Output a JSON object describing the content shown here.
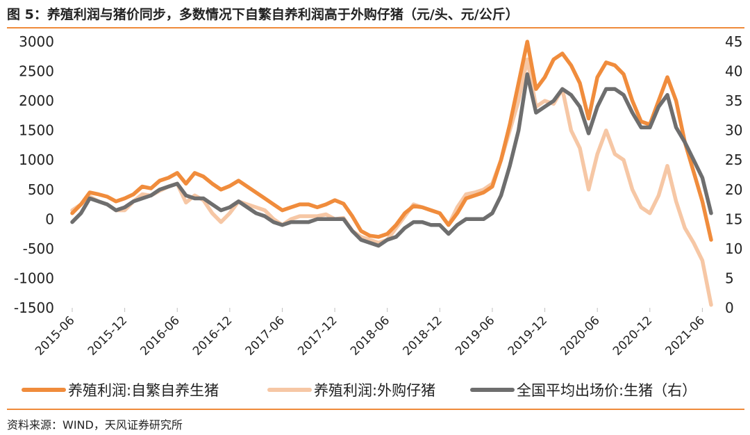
{
  "header": {
    "title": "图 5：养殖利润与猪价同步，多数情况下自繁自养利润高于外购仔猪（元/头、元/公斤）"
  },
  "footer": {
    "source": "资料来源：WIND，天风证券研究所"
  },
  "chart_data": {
    "type": "line",
    "title": "",
    "xlabel": "",
    "ylabel": "",
    "x_tick_labels": [
      "2015-06",
      "2015-12",
      "2016-06",
      "2016-12",
      "2017-06",
      "2017-12",
      "2018-06",
      "2018-12",
      "2019-06",
      "2019-12",
      "2020-06",
      "2020-12",
      "2021-06"
    ],
    "y_left_ticks": [
      "3000",
      "2500",
      "2000",
      "1500",
      "1000",
      "500",
      "0",
      "-500",
      "-1000",
      "-1500"
    ],
    "y_right_ticks": [
      "45",
      "40",
      "35",
      "30",
      "25",
      "20",
      "15",
      "10",
      "5",
      "0"
    ],
    "ylim_left": [
      -1500,
      3000
    ],
    "ylim_right": [
      0,
      45
    ],
    "x_range": [
      "2015-06",
      "2021-07"
    ],
    "grid": false,
    "legend_position": "bottom",
    "colors": {
      "self_bred": "#f08c3c",
      "purchased": "#f6c7a5",
      "price": "#6e6e6e"
    },
    "series": [
      {
        "name": "养殖利润:自繁自养生猪",
        "axis": "left",
        "points": [
          [
            "2015-06",
            100
          ],
          [
            "2015-07",
            250
          ],
          [
            "2015-08",
            450
          ],
          [
            "2015-09",
            420
          ],
          [
            "2015-10",
            380
          ],
          [
            "2015-11",
            300
          ],
          [
            "2015-12",
            350
          ],
          [
            "2016-01",
            420
          ],
          [
            "2016-02",
            550
          ],
          [
            "2016-03",
            520
          ],
          [
            "2016-04",
            650
          ],
          [
            "2016-05",
            700
          ],
          [
            "2016-06",
            780
          ],
          [
            "2016-07",
            600
          ],
          [
            "2016-08",
            780
          ],
          [
            "2016-09",
            720
          ],
          [
            "2016-10",
            600
          ],
          [
            "2016-11",
            500
          ],
          [
            "2016-12",
            560
          ],
          [
            "2017-01",
            650
          ],
          [
            "2017-02",
            550
          ],
          [
            "2017-03",
            450
          ],
          [
            "2017-04",
            350
          ],
          [
            "2017-05",
            250
          ],
          [
            "2017-06",
            150
          ],
          [
            "2017-07",
            200
          ],
          [
            "2017-08",
            250
          ],
          [
            "2017-09",
            250
          ],
          [
            "2017-10",
            200
          ],
          [
            "2017-11",
            250
          ],
          [
            "2017-12",
            320
          ],
          [
            "2018-01",
            260
          ],
          [
            "2018-02",
            50
          ],
          [
            "2018-03",
            -200
          ],
          [
            "2018-04",
            -280
          ],
          [
            "2018-05",
            -300
          ],
          [
            "2018-06",
            -250
          ],
          [
            "2018-07",
            -100
          ],
          [
            "2018-08",
            100
          ],
          [
            "2018-09",
            220
          ],
          [
            "2018-10",
            200
          ],
          [
            "2018-11",
            150
          ],
          [
            "2018-12",
            100
          ],
          [
            "2019-01",
            -100
          ],
          [
            "2019-02",
            100
          ],
          [
            "2019-03",
            350
          ],
          [
            "2019-04",
            400
          ],
          [
            "2019-05",
            450
          ],
          [
            "2019-06",
            550
          ],
          [
            "2019-07",
            1000
          ],
          [
            "2019-08",
            1600
          ],
          [
            "2019-09",
            2300
          ],
          [
            "2019-10",
            3000
          ],
          [
            "2019-11",
            2200
          ],
          [
            "2019-12",
            2400
          ],
          [
            "2020-01",
            2700
          ],
          [
            "2020-02",
            2800
          ],
          [
            "2020-03",
            2600
          ],
          [
            "2020-04",
            2300
          ],
          [
            "2020-05",
            1700
          ],
          [
            "2020-06",
            2400
          ],
          [
            "2020-07",
            2650
          ],
          [
            "2020-08",
            2600
          ],
          [
            "2020-09",
            2450
          ],
          [
            "2020-10",
            2000
          ],
          [
            "2020-11",
            1650
          ],
          [
            "2020-12",
            1600
          ],
          [
            "2021-01",
            2000
          ],
          [
            "2021-02",
            2400
          ],
          [
            "2021-03",
            2000
          ],
          [
            "2021-04",
            1300
          ],
          [
            "2021-05",
            800
          ],
          [
            "2021-06",
            300
          ],
          [
            "2021-07",
            -350
          ]
        ]
      },
      {
        "name": "养殖利润:外购仔猪",
        "axis": "left",
        "points": [
          [
            "2015-06",
            150
          ],
          [
            "2015-07",
            250
          ],
          [
            "2015-08",
            380
          ],
          [
            "2015-09",
            300
          ],
          [
            "2015-10",
            250
          ],
          [
            "2015-11",
            150
          ],
          [
            "2015-12",
            150
          ],
          [
            "2016-01",
            300
          ],
          [
            "2016-02",
            420
          ],
          [
            "2016-03",
            400
          ],
          [
            "2016-04",
            480
          ],
          [
            "2016-05",
            550
          ],
          [
            "2016-06",
            600
          ],
          [
            "2016-07",
            280
          ],
          [
            "2016-08",
            400
          ],
          [
            "2016-09",
            320
          ],
          [
            "2016-10",
            100
          ],
          [
            "2016-11",
            -50
          ],
          [
            "2016-12",
            100
          ],
          [
            "2017-01",
            300
          ],
          [
            "2017-02",
            250
          ],
          [
            "2017-03",
            200
          ],
          [
            "2017-04",
            150
          ],
          [
            "2017-05",
            0
          ],
          [
            "2017-06",
            -100
          ],
          [
            "2017-07",
            0
          ],
          [
            "2017-08",
            50
          ],
          [
            "2017-09",
            50
          ],
          [
            "2017-10",
            50
          ],
          [
            "2017-11",
            80
          ],
          [
            "2017-12",
            0
          ],
          [
            "2018-01",
            20
          ],
          [
            "2018-02",
            -200
          ],
          [
            "2018-03",
            -300
          ],
          [
            "2018-04",
            -350
          ],
          [
            "2018-05",
            -400
          ],
          [
            "2018-06",
            -350
          ],
          [
            "2018-07",
            -150
          ],
          [
            "2018-08",
            50
          ],
          [
            "2018-09",
            250
          ],
          [
            "2018-10",
            200
          ],
          [
            "2018-11",
            150
          ],
          [
            "2018-12",
            100
          ],
          [
            "2019-01",
            -100
          ],
          [
            "2019-02",
            200
          ],
          [
            "2019-03",
            420
          ],
          [
            "2019-04",
            450
          ],
          [
            "2019-05",
            500
          ],
          [
            "2019-06",
            600
          ],
          [
            "2019-07",
            1000
          ],
          [
            "2019-08",
            1500
          ],
          [
            "2019-09",
            2000
          ],
          [
            "2019-10",
            2700
          ],
          [
            "2019-11",
            1900
          ],
          [
            "2019-12",
            2000
          ],
          [
            "2020-01",
            1950
          ],
          [
            "2020-02",
            2200
          ],
          [
            "2020-03",
            1500
          ],
          [
            "2020-04",
            1200
          ],
          [
            "2020-05",
            500
          ],
          [
            "2020-06",
            1100
          ],
          [
            "2020-07",
            1500
          ],
          [
            "2020-08",
            1100
          ],
          [
            "2020-09",
            1000
          ],
          [
            "2020-10",
            500
          ],
          [
            "2020-11",
            200
          ],
          [
            "2020-12",
            100
          ],
          [
            "2021-01",
            400
          ],
          [
            "2021-02",
            900
          ],
          [
            "2021-03",
            300
          ],
          [
            "2021-04",
            -150
          ],
          [
            "2021-05",
            -400
          ],
          [
            "2021-06",
            -700
          ],
          [
            "2021-07",
            -1450
          ]
        ]
      },
      {
        "name": "全国平均出场价:生猪（右）",
        "axis": "right",
        "points": [
          [
            "2015-06",
            14.5
          ],
          [
            "2015-07",
            16
          ],
          [
            "2015-08",
            18.5
          ],
          [
            "2015-09",
            18
          ],
          [
            "2015-10",
            17.5
          ],
          [
            "2015-11",
            16.5
          ],
          [
            "2015-12",
            17
          ],
          [
            "2016-01",
            18
          ],
          [
            "2016-02",
            18.5
          ],
          [
            "2016-03",
            19
          ],
          [
            "2016-04",
            20
          ],
          [
            "2016-05",
            20.5
          ],
          [
            "2016-06",
            21
          ],
          [
            "2016-07",
            19
          ],
          [
            "2016-08",
            18.5
          ],
          [
            "2016-09",
            18.5
          ],
          [
            "2016-10",
            17.5
          ],
          [
            "2016-11",
            16.5
          ],
          [
            "2016-12",
            17
          ],
          [
            "2017-01",
            18
          ],
          [
            "2017-02",
            17
          ],
          [
            "2017-03",
            16
          ],
          [
            "2017-04",
            15.5
          ],
          [
            "2017-05",
            14.5
          ],
          [
            "2017-06",
            14
          ],
          [
            "2017-07",
            14.5
          ],
          [
            "2017-08",
            14.5
          ],
          [
            "2017-09",
            14.5
          ],
          [
            "2017-10",
            15
          ],
          [
            "2017-11",
            15
          ],
          [
            "2017-12",
            15
          ],
          [
            "2018-01",
            15
          ],
          [
            "2018-02",
            13
          ],
          [
            "2018-03",
            11.5
          ],
          [
            "2018-04",
            11
          ],
          [
            "2018-05",
            10.5
          ],
          [
            "2018-06",
            11.5
          ],
          [
            "2018-07",
            12
          ],
          [
            "2018-08",
            13.5
          ],
          [
            "2018-09",
            14.5
          ],
          [
            "2018-10",
            14.5
          ],
          [
            "2018-11",
            14
          ],
          [
            "2018-12",
            14
          ],
          [
            "2019-01",
            12.5
          ],
          [
            "2019-02",
            14
          ],
          [
            "2019-03",
            15
          ],
          [
            "2019-04",
            15
          ],
          [
            "2019-05",
            15
          ],
          [
            "2019-06",
            16
          ],
          [
            "2019-07",
            19
          ],
          [
            "2019-08",
            24
          ],
          [
            "2019-09",
            30
          ],
          [
            "2019-10",
            39.5
          ],
          [
            "2019-11",
            33
          ],
          [
            "2019-12",
            34
          ],
          [
            "2020-01",
            35
          ],
          [
            "2020-02",
            37
          ],
          [
            "2020-03",
            36
          ],
          [
            "2020-04",
            34
          ],
          [
            "2020-05",
            29.5
          ],
          [
            "2020-06",
            34
          ],
          [
            "2020-07",
            37
          ],
          [
            "2020-08",
            37
          ],
          [
            "2020-09",
            36
          ],
          [
            "2020-10",
            33
          ],
          [
            "2020-11",
            30.5
          ],
          [
            "2020-12",
            30.5
          ],
          [
            "2021-01",
            34
          ],
          [
            "2021-02",
            36
          ],
          [
            "2021-03",
            30.5
          ],
          [
            "2021-04",
            28
          ],
          [
            "2021-05",
            25
          ],
          [
            "2021-06",
            22
          ],
          [
            "2021-07",
            16
          ]
        ]
      }
    ]
  }
}
